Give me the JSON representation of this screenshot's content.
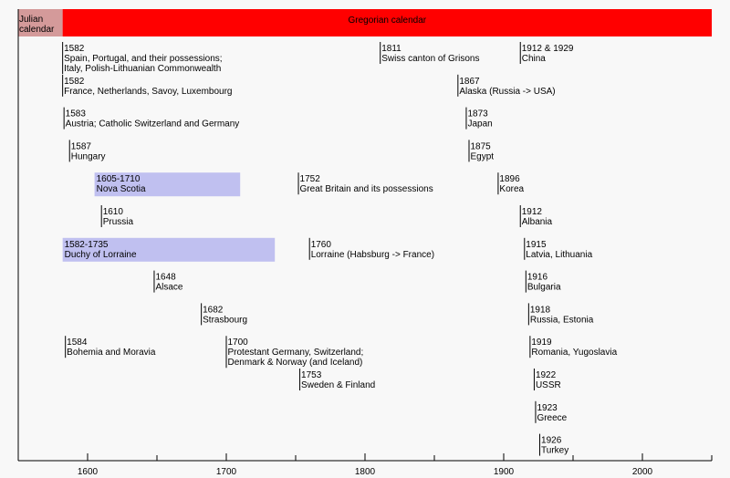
{
  "chart_data": {
    "type": "timeline",
    "xlim": [
      1550,
      2050
    ],
    "ticks": [
      1600,
      1700,
      1800,
      1900,
      2000
    ],
    "grid": false,
    "calendars": [
      {
        "name": "Julian calendar",
        "lines": [
          "Julian",
          "calendar"
        ],
        "start": 1550,
        "end": 1582,
        "color": "#d49a9a"
      },
      {
        "name": "Gregorian calendar",
        "lines": [
          "Gregorian calendar"
        ],
        "start": 1582,
        "end": 2050,
        "color": "#ff0000"
      }
    ],
    "events": [
      {
        "year": 1582,
        "row": 0,
        "lines": [
          "1582",
          "Spain, Portugal,  and their possessions;",
          "Italy, Polish-Lithuanian Commonwealth"
        ]
      },
      {
        "year": 1582,
        "row": 1,
        "lines": [
          "1582",
          "France, Netherlands, Savoy, Luxembourg"
        ]
      },
      {
        "year": 1583,
        "row": 2,
        "lines": [
          "1583",
          "Austria; Catholic Switzerland and Germany"
        ]
      },
      {
        "year": 1587,
        "row": 3,
        "lines": [
          "1587",
          "Hungary"
        ]
      },
      {
        "start": 1605,
        "end": 1710,
        "row": 4,
        "lines": [
          "1605-1710",
          "Nova Scotia"
        ]
      },
      {
        "year": 1610,
        "row": 5,
        "lines": [
          "1610",
          "Prussia"
        ]
      },
      {
        "start": 1582,
        "end": 1735,
        "row": 6,
        "lines": [
          "1582-1735",
          "Duchy of Lorraine"
        ]
      },
      {
        "year": 1648,
        "row": 7,
        "lines": [
          "1648",
          "Alsace"
        ]
      },
      {
        "year": 1682,
        "row": 8,
        "lines": [
          "1682",
          "Strasbourg"
        ]
      },
      {
        "year": 1584,
        "row": 9,
        "lines": [
          "1584",
          "Bohemia and Moravia"
        ]
      },
      {
        "year": 1700,
        "row": 9,
        "lines": [
          "1700",
          "Protestant Germany, Switzerland;",
          "Denmark & Norway (and Iceland)"
        ]
      },
      {
        "year": 1752,
        "row": 4,
        "lines": [
          "1752",
          "Great Britain and its possessions"
        ]
      },
      {
        "year": 1760,
        "row": 6,
        "lines": [
          "1760",
          "Lorraine (Habsburg -> France)"
        ]
      },
      {
        "year": 1753,
        "row": 10,
        "lines": [
          "1753",
          "Sweden & Finland"
        ]
      },
      {
        "year": 1811,
        "row": 0,
        "lines": [
          "1811",
          "Swiss canton of Grisons"
        ]
      },
      {
        "year": 1867,
        "row": 1,
        "lines": [
          "1867",
          "Alaska (Russia -> USA)"
        ]
      },
      {
        "year": 1873,
        "row": 2,
        "lines": [
          "1873",
          "Japan"
        ]
      },
      {
        "year": 1875,
        "row": 3,
        "lines": [
          "1875",
          "Egypt"
        ]
      },
      {
        "year": 1896,
        "row": 4,
        "lines": [
          "1896",
          "Korea"
        ]
      },
      {
        "year": 1912,
        "row": 0,
        "lines": [
          "1912 & 1929",
          "China"
        ]
      },
      {
        "year": 1912,
        "row": 5,
        "lines": [
          "1912",
          "Albania"
        ]
      },
      {
        "year": 1915,
        "row": 6,
        "lines": [
          "1915",
          "Latvia, Lithuania"
        ]
      },
      {
        "year": 1916,
        "row": 7,
        "lines": [
          "1916",
          "Bulgaria"
        ]
      },
      {
        "year": 1918,
        "row": 8,
        "lines": [
          "1918",
          "Russia, Estonia"
        ]
      },
      {
        "year": 1919,
        "row": 9,
        "lines": [
          "1919",
          "Romania, Yugoslavia"
        ]
      },
      {
        "year": 1922,
        "row": 10,
        "lines": [
          "1922",
          "USSR"
        ]
      },
      {
        "year": 1923,
        "row": 11,
        "lines": [
          "1923",
          "Greece"
        ]
      },
      {
        "year": 1926,
        "row": 12,
        "lines": [
          "1926",
          "Turkey"
        ]
      }
    ],
    "colors": {
      "range_bar": "#c0c0f0",
      "axis": "#000000",
      "background": "#f8f8f8"
    }
  }
}
